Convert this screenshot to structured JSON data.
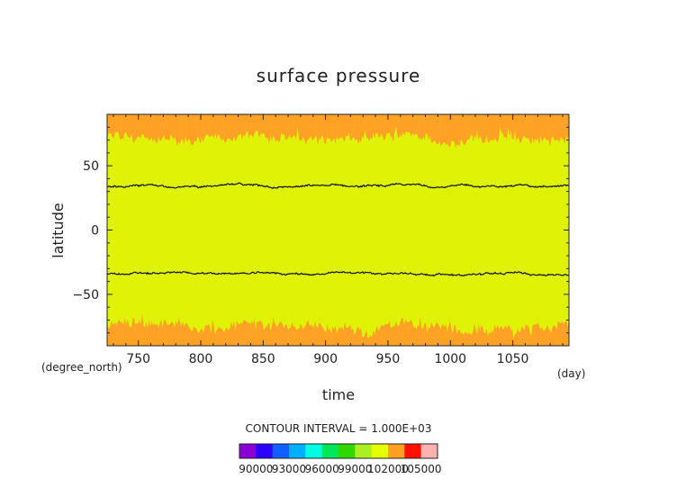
{
  "chart_data": {
    "type": "heatmap",
    "title": "surface pressure",
    "xlabel": "time",
    "ylabel": "latitude",
    "x_unit": "(day)",
    "y_unit": "(degree_north)",
    "xlim": [
      725,
      1095
    ],
    "ylim": [
      -90,
      90
    ],
    "x_ticks": [
      "750",
      "800",
      "850",
      "900",
      "950",
      "1000",
      "1050"
    ],
    "x_tick_values": [
      750,
      800,
      850,
      900,
      950,
      1000,
      1050
    ],
    "y_ticks": [
      "50",
      "0",
      "−50"
    ],
    "y_tick_values": [
      50,
      0,
      -50
    ],
    "contour_interval_text": "CONTOUR INTERVAL = 1.000E+03",
    "contour_lines": [
      {
        "level": 102000,
        "latitude_mean": 34
      },
      {
        "level": 102000,
        "latitude_mean": -34
      }
    ],
    "colorbar": {
      "labels": [
        "90000",
        "93000",
        "96000",
        "99000",
        "102000",
        "105000"
      ],
      "label_values": [
        90000,
        93000,
        96000,
        99000,
        102000,
        105000
      ],
      "colors": [
        "#8a00d4",
        "#2c00ff",
        "#1060ff",
        "#00b0ff",
        "#00ffe0",
        "#00e85a",
        "#30d800",
        "#aaf020",
        "#e6ff00",
        "#ffa020",
        "#ff1000",
        "#ffb0b0"
      ]
    },
    "fields": {
      "background_color": "#dff200",
      "high_color": "#ffa020",
      "high_north_boundary_mean": 72,
      "high_south_boundary_mean": -75
    }
  }
}
